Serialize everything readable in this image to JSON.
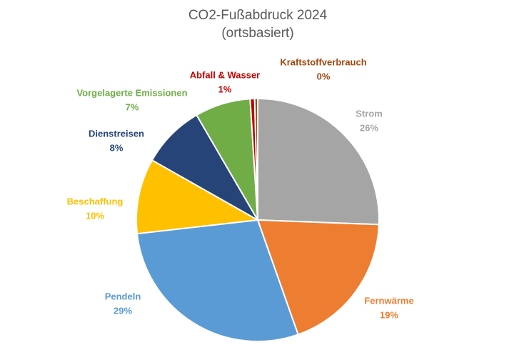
{
  "chart_data": {
    "type": "pie",
    "title": "CO2-Fußabdruck 2024",
    "subtitle": "(ortsbasiert)",
    "categories": [
      "Strom",
      "Fernwärme",
      "Pendeln",
      "Beschaffung",
      "Dienstreisen",
      "Vorgelagerte Emissionen",
      "Abfall & Wasser",
      "Kraftstoffverbrauch"
    ],
    "values": [
      25.6,
      19.0,
      28.6,
      10.0,
      8.4,
      7.4,
      0.6,
      0.4
    ],
    "value_labels": [
      "26%",
      "19%",
      "29%",
      "10%",
      "8%",
      "7%",
      "1%",
      "0%"
    ],
    "colors": [
      "#a5a5a5",
      "#ed7d31",
      "#5b9bd5",
      "#ffc000",
      "#264478",
      "#70ad47",
      "#c00000",
      "#9e480e"
    ]
  }
}
